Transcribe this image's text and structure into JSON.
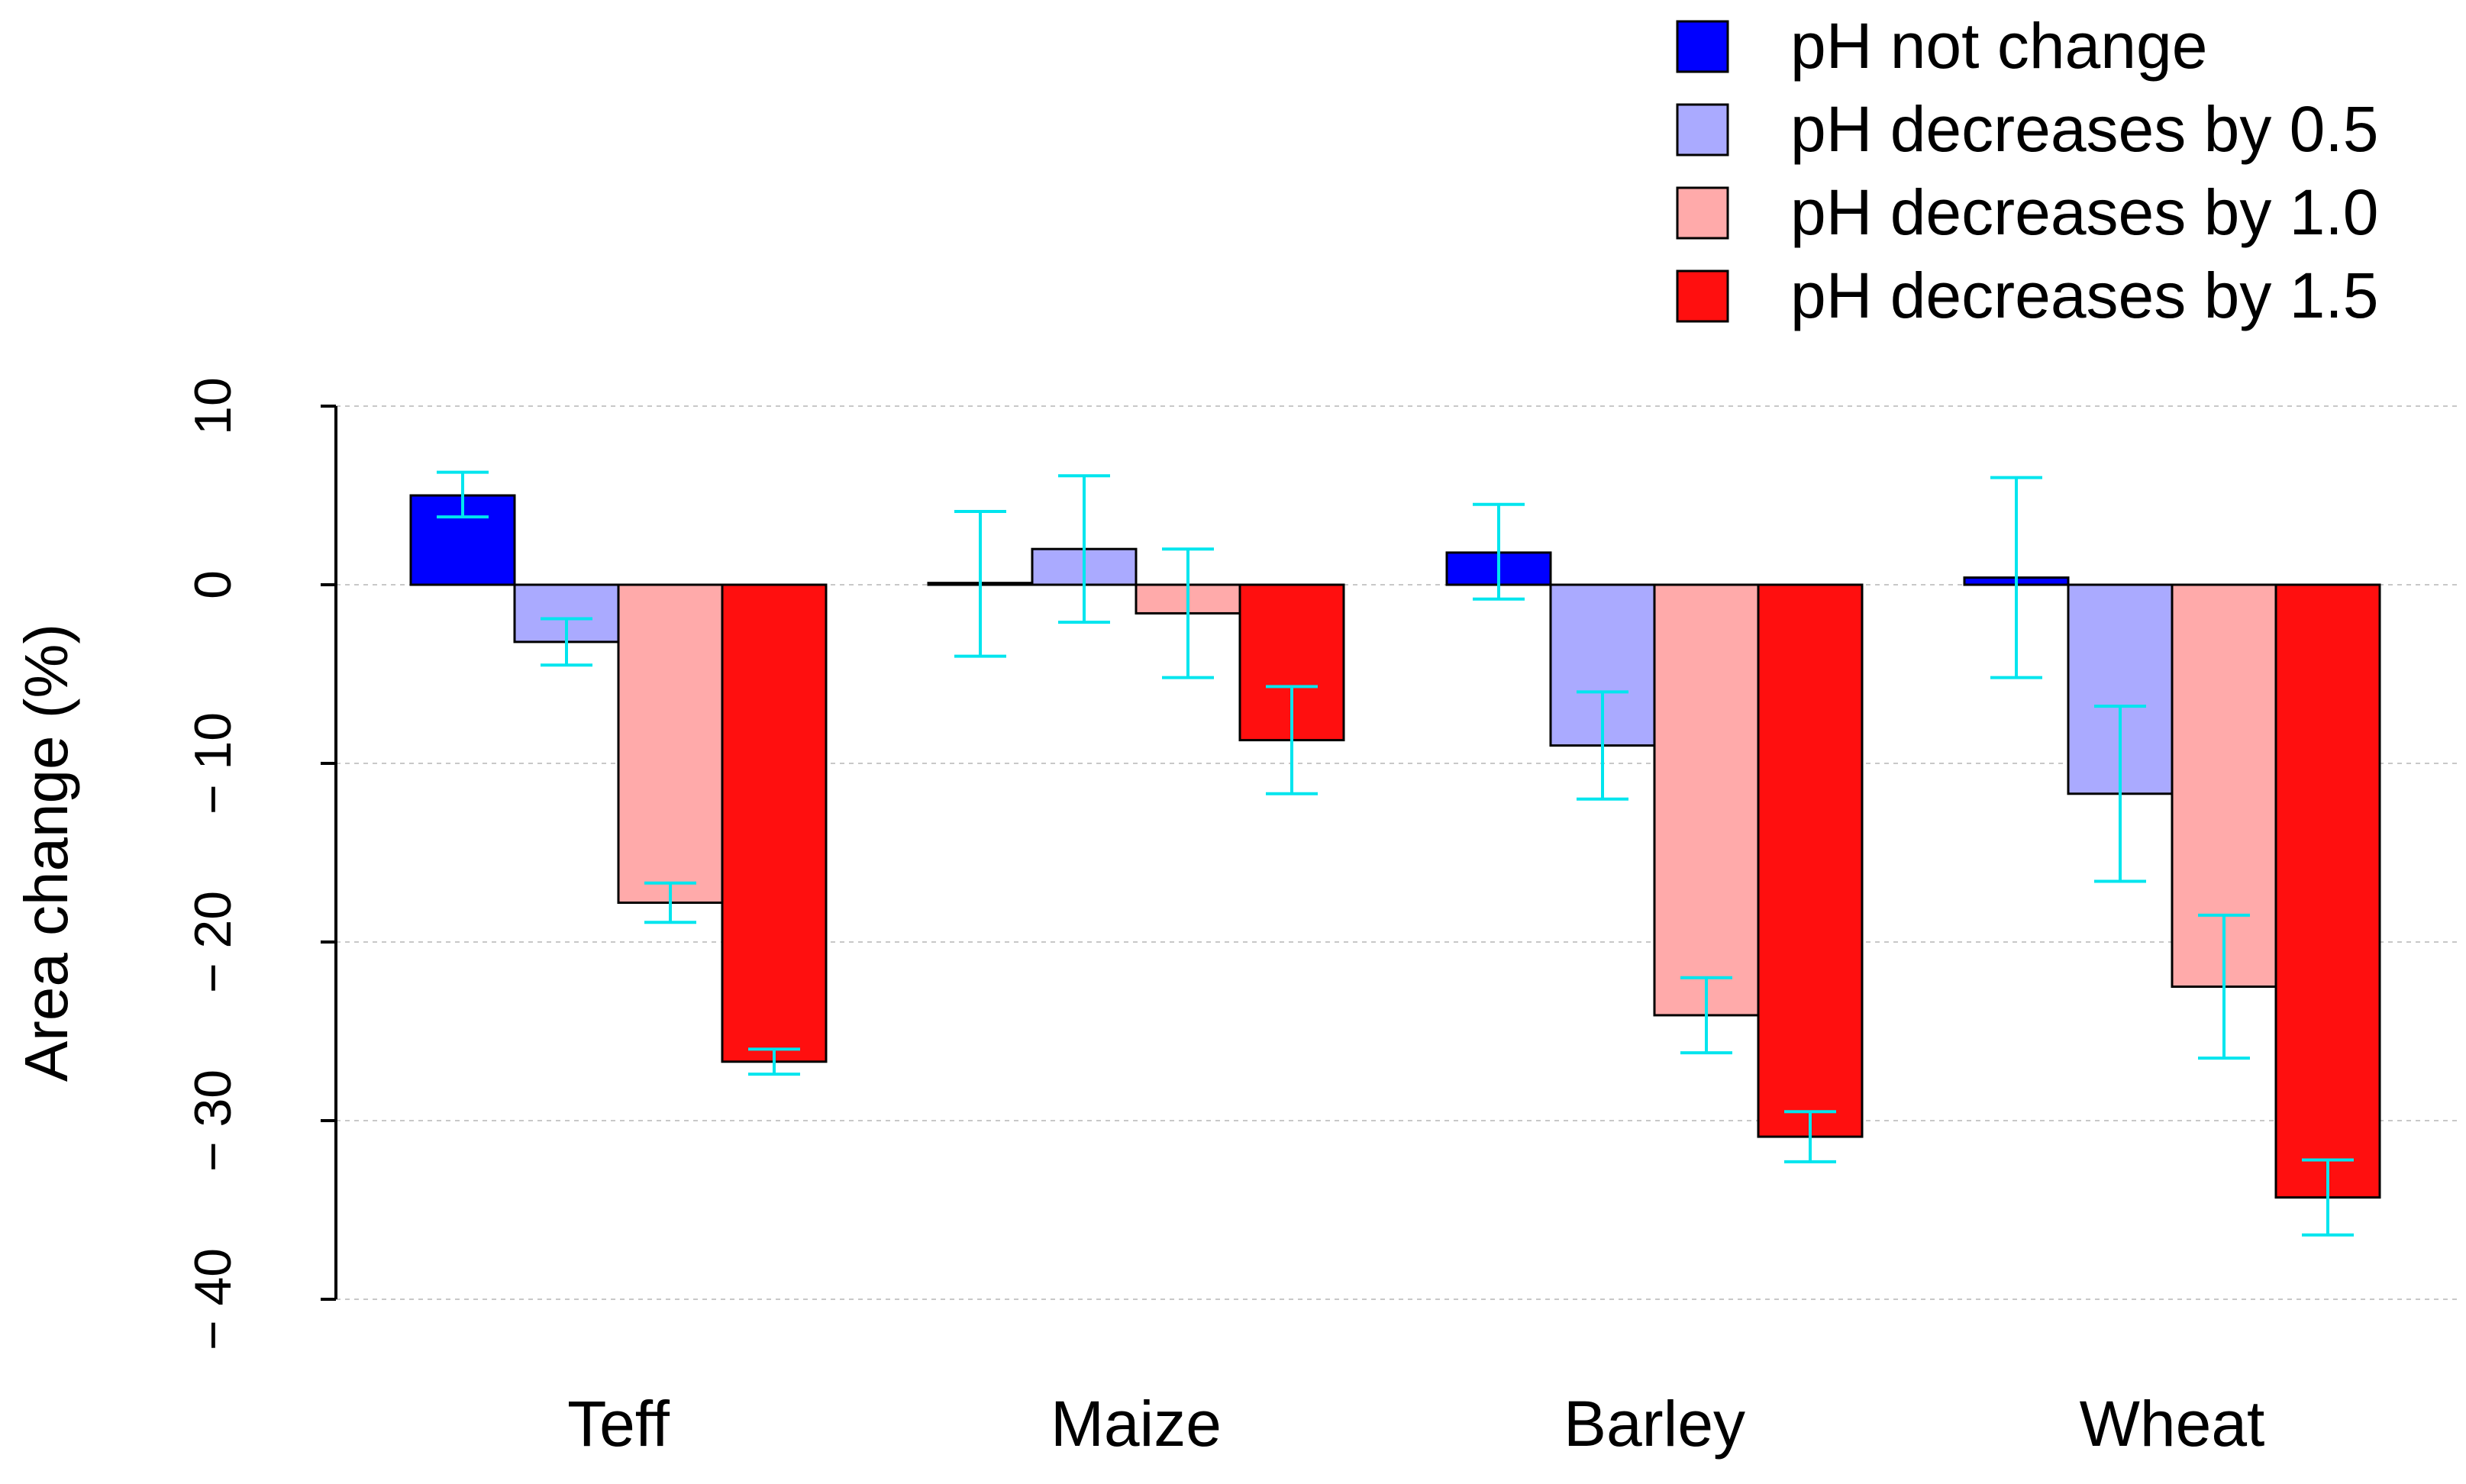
{
  "chart_data": {
    "type": "bar",
    "title": "",
    "xlabel": "",
    "ylabel": "Area change (%)",
    "categories": [
      "Teff",
      "Maize",
      "Barley",
      "Wheat"
    ],
    "ylim": [
      -40,
      10
    ],
    "yticks": [
      10,
      0,
      -10,
      -20,
      -30,
      -40
    ],
    "grid": true,
    "legend_position": "top-right",
    "series": [
      {
        "name": "pH not change",
        "color": "#0000ff",
        "values": [
          5.0,
          0.1,
          1.8,
          0.4
        ],
        "error_low": [
          3.8,
          -4.0,
          -0.8,
          -5.2
        ],
        "error_high": [
          6.3,
          4.1,
          4.5,
          6.0
        ]
      },
      {
        "name": "pH decreases by 0.5",
        "color": "#aaaaff",
        "values": [
          -3.2,
          2.0,
          -9.0,
          -11.7
        ],
        "error_low": [
          -4.5,
          -2.1,
          -12.0,
          -16.6
        ],
        "error_high": [
          -1.9,
          6.1,
          -6.0,
          -6.8
        ]
      },
      {
        "name": "pH decreases by 1.0",
        "color": "#ffaaaa",
        "values": [
          -17.8,
          -1.6,
          -24.1,
          -22.5
        ],
        "error_low": [
          -18.9,
          -5.2,
          -26.2,
          -26.5
        ],
        "error_high": [
          -16.7,
          2.0,
          -22.0,
          -18.5
        ]
      },
      {
        "name": "pH decreases by 1.5",
        "color": "#ff0f0f",
        "values": [
          -26.7,
          -8.7,
          -30.9,
          -34.3
        ],
        "error_low": [
          -27.4,
          -11.7,
          -32.3,
          -36.4
        ],
        "error_high": [
          -26.0,
          -5.7,
          -29.5,
          -32.2
        ]
      }
    ],
    "error_bar_color": "#00e5ee"
  }
}
